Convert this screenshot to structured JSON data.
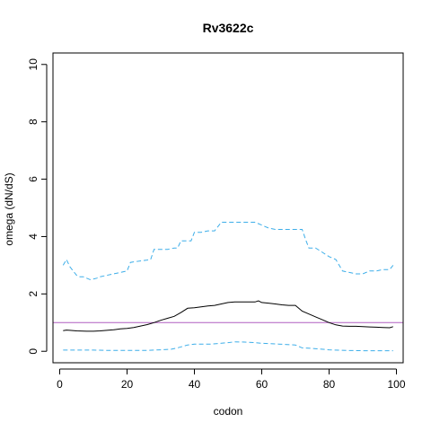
{
  "chart_data": {
    "type": "line",
    "title": "Rv3622c",
    "xlabel": "codon",
    "ylabel": "omega (dN/dS)",
    "xlim": [
      -2,
      102
    ],
    "ylim": [
      -0.4,
      10.4
    ],
    "xticks": [
      0,
      20,
      40,
      60,
      80,
      100
    ],
    "yticks": [
      0,
      2,
      4,
      6,
      8,
      10
    ],
    "reference_line": {
      "y": 1,
      "color": "#b05fc0"
    },
    "series": [
      {
        "style": "solid",
        "color": "#000000",
        "x": [
          1,
          2,
          3,
          5,
          8,
          10,
          12,
          14,
          16,
          18,
          20,
          22,
          24,
          26,
          28,
          30,
          32,
          34,
          36,
          38,
          40,
          42,
          44,
          46,
          48,
          50,
          52,
          54,
          56,
          58,
          59,
          60,
          62,
          64,
          66,
          68,
          70,
          72,
          74,
          76,
          78,
          80,
          82,
          84,
          86,
          88,
          90,
          92,
          94,
          96,
          98,
          99
        ],
        "y": [
          0.72,
          0.74,
          0.73,
          0.71,
          0.7,
          0.7,
          0.71,
          0.73,
          0.75,
          0.78,
          0.8,
          0.83,
          0.88,
          0.93,
          1.0,
          1.08,
          1.15,
          1.22,
          1.35,
          1.5,
          1.52,
          1.55,
          1.58,
          1.6,
          1.65,
          1.7,
          1.72,
          1.72,
          1.72,
          1.72,
          1.76,
          1.7,
          1.68,
          1.65,
          1.62,
          1.6,
          1.6,
          1.4,
          1.3,
          1.2,
          1.1,
          1.0,
          0.92,
          0.88,
          0.87,
          0.87,
          0.86,
          0.85,
          0.84,
          0.83,
          0.82,
          0.86
        ]
      },
      {
        "style": "dashed",
        "color": "#3daee9",
        "x": [
          1,
          2,
          3,
          4,
          5,
          6,
          7,
          8,
          9,
          10,
          11,
          12,
          14,
          16,
          18,
          20,
          21,
          22,
          24,
          26,
          27,
          28,
          30,
          32,
          34,
          35,
          36,
          38,
          39,
          40,
          42,
          44,
          46,
          48,
          50,
          52,
          54,
          56,
          58,
          60,
          62,
          64,
          66,
          68,
          70,
          72,
          73,
          74,
          76,
          78,
          80,
          82,
          84,
          86,
          88,
          90,
          92,
          94,
          96,
          98,
          99
        ],
        "y": [
          3.0,
          3.2,
          2.95,
          2.8,
          2.65,
          2.6,
          2.6,
          2.55,
          2.5,
          2.52,
          2.55,
          2.6,
          2.65,
          2.7,
          2.75,
          2.8,
          3.1,
          3.12,
          3.15,
          3.18,
          3.2,
          3.55,
          3.55,
          3.55,
          3.6,
          3.6,
          3.85,
          3.85,
          3.85,
          4.15,
          4.15,
          4.2,
          4.2,
          4.5,
          4.5,
          4.5,
          4.5,
          4.5,
          4.5,
          4.4,
          4.3,
          4.25,
          4.25,
          4.25,
          4.25,
          4.25,
          3.9,
          3.6,
          3.6,
          3.45,
          3.3,
          3.2,
          2.8,
          2.75,
          2.7,
          2.7,
          2.8,
          2.8,
          2.85,
          2.85,
          3.0
        ]
      },
      {
        "style": "dashed",
        "color": "#3daee9",
        "x": [
          1,
          5,
          10,
          15,
          20,
          25,
          30,
          33,
          35,
          38,
          40,
          45,
          48,
          50,
          52,
          55,
          58,
          60,
          65,
          70,
          72,
          75,
          80,
          85,
          90,
          95,
          99
        ],
        "y": [
          0.04,
          0.04,
          0.04,
          0.03,
          0.03,
          0.03,
          0.05,
          0.07,
          0.12,
          0.22,
          0.25,
          0.25,
          0.28,
          0.3,
          0.33,
          0.32,
          0.3,
          0.28,
          0.25,
          0.22,
          0.12,
          0.1,
          0.05,
          0.03,
          0.02,
          0.02,
          0.02
        ]
      }
    ]
  }
}
